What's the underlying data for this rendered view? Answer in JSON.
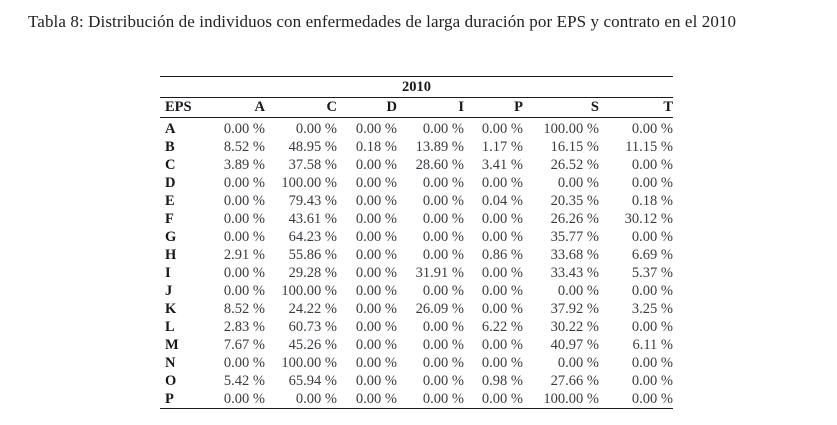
{
  "caption": {
    "text": "Tabla 8: Distribución de individuos con enfermedades de larga duración por EPS y contrato en el 2010"
  },
  "table": {
    "year_header": "2010",
    "columns": [
      "EPS",
      "A",
      "C",
      "D",
      "I",
      "P",
      "S",
      "T"
    ],
    "rows": [
      {
        "eps": "A",
        "values": [
          "0.00 %",
          "0.00 %",
          "0.00 %",
          "0.00 %",
          "0.00 %",
          "100.00 %",
          "0.00 %"
        ]
      },
      {
        "eps": "B",
        "values": [
          "8.52 %",
          "48.95 %",
          "0.18 %",
          "13.89 %",
          "1.17 %",
          "16.15 %",
          "11.15 %"
        ]
      },
      {
        "eps": "C",
        "values": [
          "3.89 %",
          "37.58 %",
          "0.00 %",
          "28.60 %",
          "3.41 %",
          "26.52 %",
          "0.00 %"
        ]
      },
      {
        "eps": "D",
        "values": [
          "0.00 %",
          "100.00 %",
          "0.00 %",
          "0.00 %",
          "0.00 %",
          "0.00 %",
          "0.00 %"
        ]
      },
      {
        "eps": "E",
        "values": [
          "0.00 %",
          "79.43 %",
          "0.00 %",
          "0.00 %",
          "0.04 %",
          "20.35 %",
          "0.18 %"
        ]
      },
      {
        "eps": "F",
        "values": [
          "0.00 %",
          "43.61 %",
          "0.00 %",
          "0.00 %",
          "0.00 %",
          "26.26 %",
          "30.12 %"
        ]
      },
      {
        "eps": "G",
        "values": [
          "0.00 %",
          "64.23 %",
          "0.00 %",
          "0.00 %",
          "0.00 %",
          "35.77 %",
          "0.00 %"
        ]
      },
      {
        "eps": "H",
        "values": [
          "2.91 %",
          "55.86 %",
          "0.00 %",
          "0.00 %",
          "0.86 %",
          "33.68 %",
          "6.69 %"
        ]
      },
      {
        "eps": "I",
        "values": [
          "0.00 %",
          "29.28 %",
          "0.00 %",
          "31.91 %",
          "0.00 %",
          "33.43 %",
          "5.37 %"
        ]
      },
      {
        "eps": "J",
        "values": [
          "0.00 %",
          "100.00 %",
          "0.00 %",
          "0.00 %",
          "0.00 %",
          "0.00 %",
          "0.00 %"
        ]
      },
      {
        "eps": "K",
        "values": [
          "8.52 %",
          "24.22 %",
          "0.00 %",
          "26.09 %",
          "0.00 %",
          "37.92 %",
          "3.25 %"
        ]
      },
      {
        "eps": "L",
        "values": [
          "2.83 %",
          "60.73 %",
          "0.00 %",
          "0.00 %",
          "6.22 %",
          "30.22 %",
          "0.00 %"
        ]
      },
      {
        "eps": "M",
        "values": [
          "7.67 %",
          "45.26 %",
          "0.00 %",
          "0.00 %",
          "0.00 %",
          "40.97 %",
          "6.11 %"
        ]
      },
      {
        "eps": "N",
        "values": [
          "0.00 %",
          "100.00 %",
          "0.00 %",
          "0.00 %",
          "0.00 %",
          "0.00 %",
          "0.00 %"
        ]
      },
      {
        "eps": "O",
        "values": [
          "5.42 %",
          "65.94 %",
          "0.00 %",
          "0.00 %",
          "0.98 %",
          "27.66 %",
          "0.00 %"
        ]
      },
      {
        "eps": "P",
        "values": [
          "0.00 %",
          "0.00 %",
          "0.00 %",
          "0.00 %",
          "0.00 %",
          "100.00 %",
          "0.00 %"
        ]
      }
    ]
  }
}
